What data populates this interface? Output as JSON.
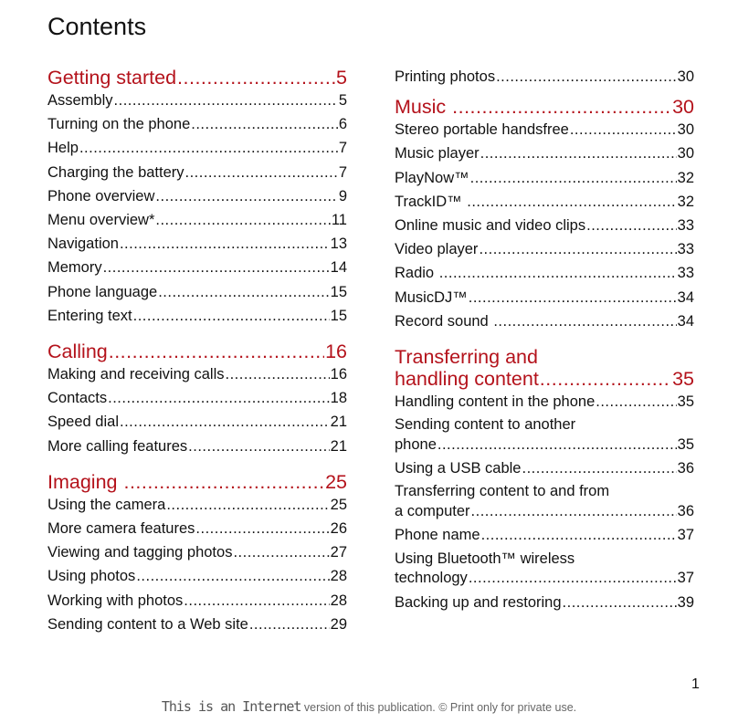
{
  "title": "Contents",
  "page_number": "1",
  "footer": {
    "prefix": "This is an Internet",
    "text": " version of this publication. © Print only for private use."
  },
  "left": {
    "s1": {
      "label": "Getting started",
      "page": "5",
      "items": [
        {
          "label": "Assembly",
          "page": "5"
        },
        {
          "label": "Turning on the phone",
          "page": "6"
        },
        {
          "label": "Help",
          "page": "7"
        },
        {
          "label": "Charging the battery",
          "page": "7"
        },
        {
          "label": "Phone overview",
          "page": "9"
        },
        {
          "label": "Menu overview*",
          "page": "11"
        },
        {
          "label": "Navigation",
          "page": "13"
        },
        {
          "label": "Memory",
          "page": "14"
        },
        {
          "label": "Phone language",
          "page": "15"
        },
        {
          "label": "Entering text",
          "page": "15"
        }
      ]
    },
    "s2": {
      "label": "Calling",
      "page": "16",
      "items": [
        {
          "label": "Making and receiving calls",
          "page": "16"
        },
        {
          "label": "Contacts",
          "page": "18"
        },
        {
          "label": "Speed dial",
          "page": "21"
        },
        {
          "label": "More calling features",
          "page": "21"
        }
      ]
    },
    "s3": {
      "label": "Imaging ",
      "page": "25",
      "items": [
        {
          "label": "Using the camera",
          "page": "25"
        },
        {
          "label": "More camera features",
          "page": "26"
        },
        {
          "label": "Viewing and tagging photos",
          "page": "27"
        },
        {
          "label": "Using photos",
          "page": "28"
        },
        {
          "label": "Working with photos",
          "page": "28"
        },
        {
          "label": "Sending content to a Web site",
          "page": "29"
        }
      ]
    }
  },
  "right": {
    "top_items": [
      {
        "label": "Printing photos",
        "page": "30"
      }
    ],
    "s4": {
      "label": "Music ",
      "page": "30",
      "items": [
        {
          "label": "Stereo portable handsfree",
          "page": "30"
        },
        {
          "label": "Music player",
          "page": "30"
        },
        {
          "label": "PlayNow™",
          "page": "32"
        },
        {
          "label": "TrackID™ ",
          "page": "32"
        },
        {
          "label": "Online music and video clips",
          "page": "33"
        },
        {
          "label": "Video player",
          "page": "33"
        },
        {
          "label": "Radio ",
          "page": "33"
        },
        {
          "label": "MusicDJ™",
          "page": "34"
        },
        {
          "label": "Record sound ",
          "page": "34"
        }
      ]
    },
    "s5": {
      "line1": "Transferring and",
      "line2": "handling content",
      "page": "35",
      "items": [
        {
          "label": "Handling content in the phone",
          "page": "35"
        },
        {
          "line1": "Sending content to another",
          "line2": "phone",
          "page": "35"
        },
        {
          "label": "Using a USB cable",
          "page": "36"
        },
        {
          "line1": "Transferring content to and from",
          "line2": "a computer",
          "page": "36"
        },
        {
          "label": "Phone name",
          "page": "37"
        },
        {
          "line1": "Using Bluetooth™ wireless",
          "line2": "technology",
          "page": "37"
        },
        {
          "label": "Backing up and restoring",
          "page": "39"
        }
      ]
    }
  }
}
